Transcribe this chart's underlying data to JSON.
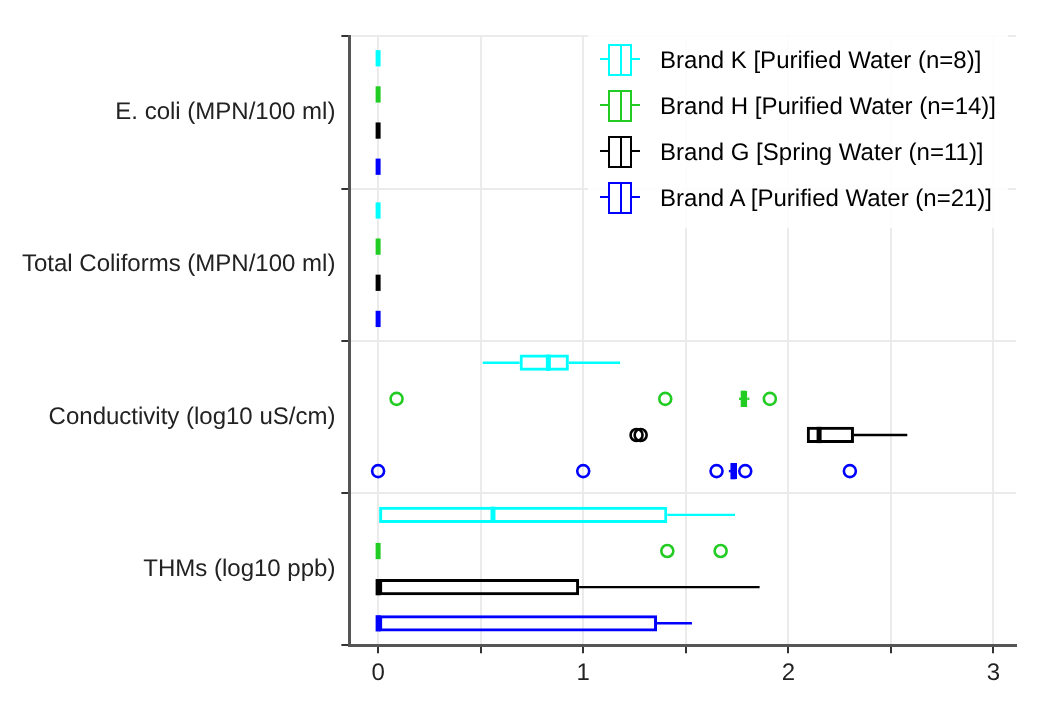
{
  "chart_data": {
    "type": "box",
    "orientation": "horizontal",
    "categories": [
      "E. coli (MPN/100 ml)",
      "Total Coliforms (MPN/100 ml)",
      "Conductivity (log10 uS/cm)",
      "THMs (log10 ppb)"
    ],
    "series": [
      {
        "name": "Brand K [Purified Water (n=8)]",
        "color": "#00ffff",
        "boxes": [
          {
            "low": 0,
            "q1": 0,
            "median": 0,
            "q3": 0,
            "high": 0
          },
          {
            "low": 0,
            "q1": 0,
            "median": 0,
            "q3": 0,
            "high": 0
          },
          {
            "low": 0.51,
            "q1": 0.69,
            "median": 0.83,
            "q3": 0.93,
            "high": 1.18
          },
          {
            "low": 0,
            "q1": 0,
            "median": 0.56,
            "q3": 1.41,
            "high": 1.74
          }
        ]
      },
      {
        "name": "Brand H [Purified Water (n=14)]",
        "color": "#22cc22",
        "boxes": [
          {
            "low": 0,
            "q1": 0,
            "median": 0,
            "q3": 0,
            "high": 0
          },
          {
            "low": 0,
            "q1": 0,
            "median": 0,
            "q3": 0,
            "high": 0
          },
          {
            "low": 1.76,
            "q1": 1.77,
            "median": 1.78,
            "q3": 1.8,
            "high": 1.81,
            "outliers": [
              0.09,
              1.4,
              1.91
            ]
          },
          {
            "low": 0,
            "q1": 0,
            "median": 0,
            "q3": 0,
            "high": 0,
            "outliers": [
              1.41,
              1.67
            ]
          }
        ]
      },
      {
        "name": "Brand G [Spring Water (n=11)]",
        "color": "#000000",
        "boxes": [
          {
            "low": 0,
            "q1": 0,
            "median": 0,
            "q3": 0,
            "high": 0
          },
          {
            "low": 0,
            "q1": 0,
            "median": 0,
            "q3": 0,
            "high": 0
          },
          {
            "low": 2.09,
            "q1": 2.09,
            "median": 2.15,
            "q3": 2.32,
            "high": 2.58,
            "outliers": [
              1.26,
              1.28
            ]
          },
          {
            "low": 0,
            "q1": 0,
            "median": 0,
            "q3": 0.98,
            "high": 1.86
          }
        ]
      },
      {
        "name": "Brand A [Purified Water (n=21)]",
        "color": "#0000ff",
        "boxes": [
          {
            "low": 0,
            "q1": 0,
            "median": 0,
            "q3": 0,
            "high": 0
          },
          {
            "low": 0,
            "q1": 0,
            "median": 0,
            "q3": 0,
            "high": 0
          },
          {
            "low": 1.71,
            "q1": 1.72,
            "median": 1.73,
            "q3": 1.75,
            "high": 1.75,
            "outliers": [
              0,
              1.0,
              1.65,
              1.79,
              2.3
            ]
          },
          {
            "low": 0,
            "q1": 0,
            "median": 0,
            "q3": 1.36,
            "high": 1.53
          }
        ]
      }
    ],
    "xlim": [
      -0.14,
      3.11
    ],
    "xticks": [
      0,
      {
        "value": 0.5,
        "label": null
      },
      1,
      {
        "value": 1.5,
        "label": null
      },
      2,
      {
        "value": 2.5,
        "label": null
      },
      3
    ],
    "grid": true,
    "legend": "top right"
  }
}
